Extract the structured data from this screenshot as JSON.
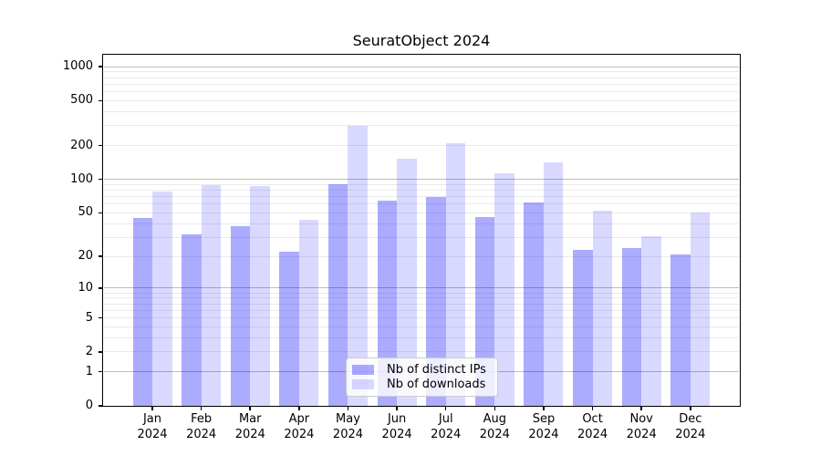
{
  "page": {
    "background": "#ffffff"
  },
  "chart_data": {
    "type": "bar",
    "title": "SeuratObject 2024",
    "y_scale": "log1p",
    "grid": true,
    "legend_position": "lower-center",
    "categories": [
      {
        "month": "Jan",
        "year": "2024"
      },
      {
        "month": "Feb",
        "year": "2024"
      },
      {
        "month": "Mar",
        "year": "2024"
      },
      {
        "month": "Apr",
        "year": "2024"
      },
      {
        "month": "May",
        "year": "2024"
      },
      {
        "month": "Jun",
        "year": "2024"
      },
      {
        "month": "Jul",
        "year": "2024"
      },
      {
        "month": "Aug",
        "year": "2024"
      },
      {
        "month": "Sep",
        "year": "2024"
      },
      {
        "month": "Oct",
        "year": "2024"
      },
      {
        "month": "Nov",
        "year": "2024"
      },
      {
        "month": "Dec",
        "year": "2024"
      }
    ],
    "series": [
      {
        "name": "Nb of distinct IPs",
        "key": "distinct-ips",
        "color": "rgba(0,0,255,0.33)",
        "values": [
          45,
          32,
          38,
          22,
          90,
          65,
          70,
          46,
          62,
          23,
          24,
          21
        ]
      },
      {
        "name": "Nb of downloads",
        "key": "downloads",
        "color": "rgba(0,0,255,0.15)",
        "values": [
          78,
          89,
          87,
          43,
          300,
          153,
          210,
          114,
          143,
          52,
          31,
          50
        ]
      }
    ],
    "y_ticks": [
      0,
      1,
      2,
      5,
      10,
      20,
      50,
      100,
      200,
      500,
      1000
    ],
    "major_gridlines": [
      1,
      10,
      100,
      1000
    ],
    "minor_gridlines": [
      2,
      3,
      4,
      5,
      6,
      7,
      8,
      9,
      20,
      30,
      40,
      50,
      60,
      70,
      80,
      90,
      200,
      300,
      400,
      500,
      600,
      700,
      800,
      900
    ],
    "ylim": [
      0,
      1260
    ],
    "colors": {
      "major_grid": "#bdbdbd",
      "minor_grid": "#eaeaea",
      "axis": "#000000"
    }
  }
}
